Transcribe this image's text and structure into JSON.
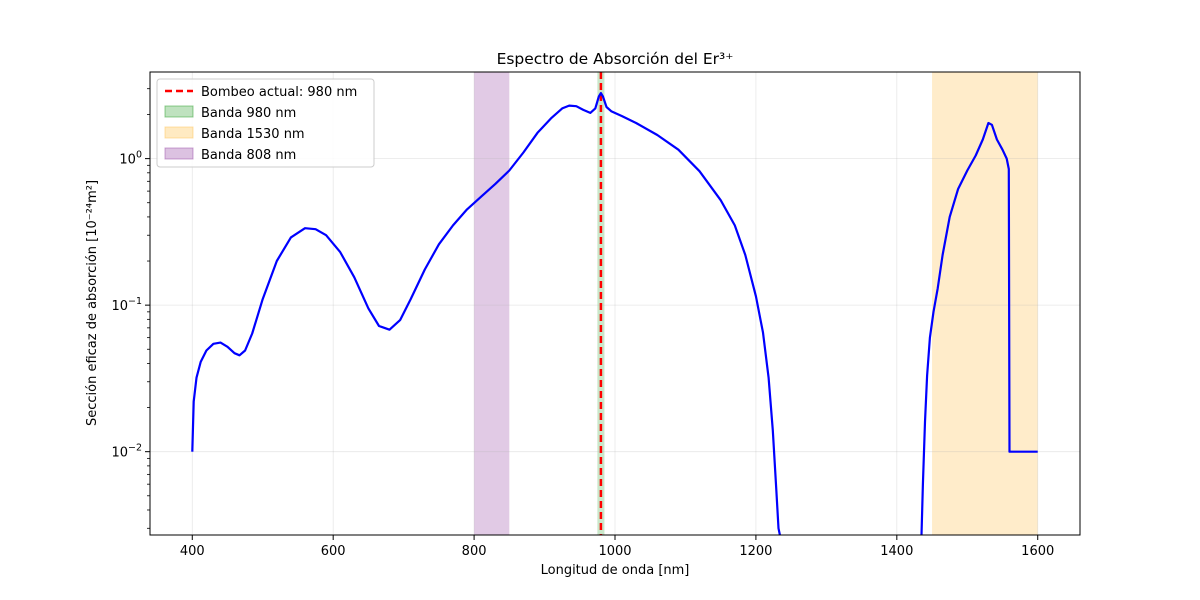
{
  "chart_data": {
    "type": "line",
    "title": "Espectro de Absorción del Er³⁺",
    "xlabel": "Longitud de onda [nm]",
    "ylabel": "Sección eficaz de absorción [10⁻²⁴m²]",
    "xlim": [
      340,
      1660
    ],
    "ylim": [
      0.0027,
      3.9
    ],
    "yscale": "log",
    "grid": true,
    "legend_position": "top-left",
    "xticks": [
      {
        "value": 400,
        "label": "400"
      },
      {
        "value": 600,
        "label": "600"
      },
      {
        "value": 800,
        "label": "800"
      },
      {
        "value": 1000,
        "label": "1000"
      },
      {
        "value": 1200,
        "label": "1200"
      },
      {
        "value": 1400,
        "label": "1400"
      },
      {
        "value": 1600,
        "label": "1600"
      }
    ],
    "yticks": [
      {
        "value": 0.01,
        "base": "10",
        "exp": "−2"
      },
      {
        "value": 0.1,
        "base": "10",
        "exp": "−1"
      },
      {
        "value": 1,
        "base": "10",
        "exp": "0"
      }
    ],
    "series": [
      {
        "name": "",
        "color": "#0000ff",
        "segments": [
          [
            [
              400,
              0.01
            ],
            [
              402,
              0.022
            ],
            [
              406,
              0.032
            ],
            [
              412,
              0.041
            ],
            [
              420,
              0.049
            ],
            [
              430,
              0.0545
            ],
            [
              440,
              0.0555
            ],
            [
              450,
              0.052
            ],
            [
              460,
              0.047
            ],
            [
              467,
              0.0455
            ],
            [
              475,
              0.049
            ],
            [
              485,
              0.064
            ],
            [
              500,
              0.11
            ],
            [
              520,
              0.2
            ],
            [
              540,
              0.29
            ],
            [
              560,
              0.335
            ],
            [
              575,
              0.33
            ],
            [
              590,
              0.3
            ],
            [
              610,
              0.23
            ],
            [
              630,
              0.155
            ],
            [
              650,
              0.095
            ],
            [
              665,
              0.072
            ],
            [
              680,
              0.068
            ],
            [
              695,
              0.079
            ],
            [
              710,
              0.11
            ],
            [
              730,
              0.175
            ],
            [
              750,
              0.26
            ],
            [
              770,
              0.35
            ],
            [
              790,
              0.45
            ],
            [
              810,
              0.55
            ],
            [
              830,
              0.67
            ],
            [
              850,
              0.83
            ],
            [
              870,
              1.1
            ],
            [
              890,
              1.5
            ],
            [
              910,
              1.9
            ],
            [
              925,
              2.2
            ],
            [
              935,
              2.3
            ],
            [
              945,
              2.28
            ],
            [
              955,
              2.15
            ],
            [
              965,
              2.05
            ],
            [
              972,
              2.2
            ],
            [
              977,
              2.65
            ],
            [
              980,
              2.8
            ],
            [
              983,
              2.65
            ],
            [
              988,
              2.25
            ],
            [
              995,
              2.1
            ],
            [
              1010,
              1.95
            ],
            [
              1030,
              1.75
            ],
            [
              1060,
              1.45
            ],
            [
              1090,
              1.15
            ],
            [
              1120,
              0.82
            ],
            [
              1150,
              0.52
            ],
            [
              1170,
              0.35
            ],
            [
              1185,
              0.22
            ],
            [
              1200,
              0.115
            ],
            [
              1210,
              0.065
            ],
            [
              1218,
              0.032
            ],
            [
              1224,
              0.014
            ],
            [
              1229,
              0.0055
            ],
            [
              1232,
              0.003
            ],
            [
              1234,
              0.0026
            ]
          ],
          [
            [
              1435,
              0.0026
            ],
            [
              1437,
              0.006
            ],
            [
              1440,
              0.016
            ],
            [
              1443,
              0.033
            ],
            [
              1447,
              0.06
            ],
            [
              1452,
              0.09
            ],
            [
              1458,
              0.13
            ],
            [
              1465,
              0.22
            ],
            [
              1475,
              0.4
            ],
            [
              1487,
              0.62
            ],
            [
              1500,
              0.83
            ],
            [
              1512,
              1.05
            ],
            [
              1522,
              1.35
            ],
            [
              1530,
              1.75
            ],
            [
              1535,
              1.7
            ],
            [
              1542,
              1.35
            ],
            [
              1550,
              1.15
            ],
            [
              1556,
              1.0
            ],
            [
              1559,
              0.85
            ],
            [
              1560,
              0.01
            ],
            [
              1600,
              0.01
            ]
          ]
        ]
      }
    ],
    "vline": {
      "label": "Bombeo actual: 980 nm",
      "x": 980,
      "color": "#ff0000",
      "style": "dashed"
    },
    "bands": [
      {
        "label": "Banda 980 nm",
        "x0": 975,
        "x1": 985,
        "color": "#2ca02c",
        "alpha": 0.25
      },
      {
        "label": "Banda 1530 nm",
        "x0": 1450,
        "x1": 1600,
        "color": "#ffc55a",
        "alpha": 0.32
      },
      {
        "label": "Banda 808 nm",
        "x0": 800,
        "x1": 850,
        "color": "#9b4fa9",
        "alpha": 0.3
      }
    ],
    "legend": [
      "Bombeo actual: 980 nm",
      "Banda 980 nm",
      "Banda 1530 nm",
      "Banda 808 nm"
    ]
  }
}
